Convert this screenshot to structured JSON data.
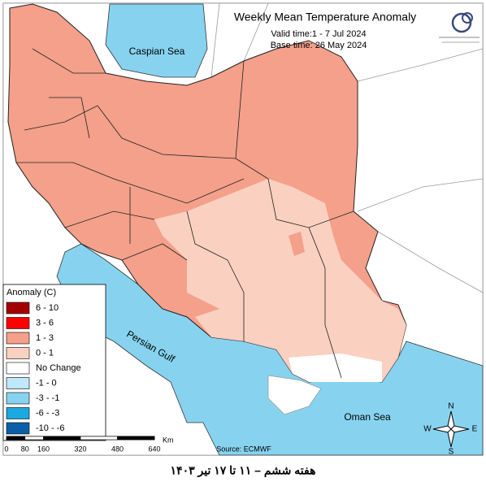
{
  "map": {
    "title": "Weekly Mean Temperature Anomaly",
    "valid_time": "Valid time:1 - 7 Jul 2024",
    "base_time": "Base time: 26 May 2024",
    "labels": [
      "Caspian Sea",
      "Persian Gulf",
      "Oman Sea"
    ],
    "source": "Source: ECMWF"
  },
  "legend": {
    "title": "Anomaly (C)",
    "items": [
      {
        "label": "6 - 10",
        "color": "#a50000"
      },
      {
        "label": "3 - 6",
        "color": "#ff0000"
      },
      {
        "label": "1 - 3",
        "color": "#f4a08a"
      },
      {
        "label": "0 - 1",
        "color": "#fad0c0"
      },
      {
        "label": "No Change",
        "color": "#ffffff"
      },
      {
        "label": "-1 - 0",
        "color": "#bfe8f9"
      },
      {
        "label": "-3 - -1",
        "color": "#87d3ef"
      },
      {
        "label": "-6 - -3",
        "color": "#1aa9e0"
      },
      {
        "label": "-10 - -6",
        "color": "#0b5fa8"
      }
    ]
  },
  "scale_bar": {
    "unit": "Km",
    "ticks": [
      0,
      80,
      160,
      320,
      480,
      640
    ]
  },
  "compass": [
    "N",
    "E",
    "S",
    "W"
  ],
  "caption": "هفته ششم – ۱۱ تا ۱۷ تیر ۱۴۰۳"
}
